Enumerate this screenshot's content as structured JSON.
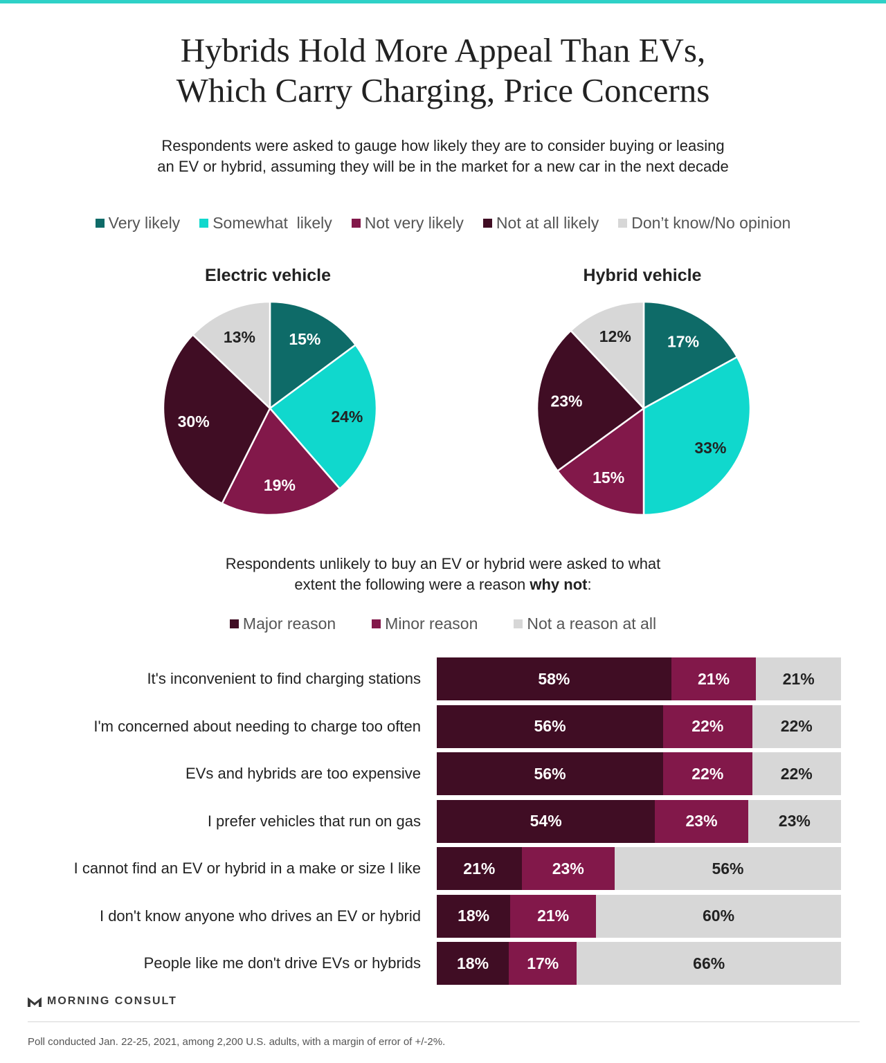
{
  "title": {
    "line1": "Hybrids Hold More Appeal Than EVs,",
    "line2": "Which Carry Charging, Price Concerns"
  },
  "subtitle": {
    "line1": "Respondents were asked to gauge how likely they are to consider buying or leasing",
    "line2": "an EV or hybrid, assuming they will be in the market for a new car in the next decade"
  },
  "colors": {
    "teal_bar": "#2fd1c7",
    "very_likely": "#0e6b68",
    "somewhat_likely": "#10d8cd",
    "not_very_likely": "#82184a",
    "not_at_all_likely": "#400d24",
    "dont_know": "#d7d7d7",
    "major_reason": "#400d24",
    "minor_reason": "#82184a",
    "not_a_reason": "#d7d7d7"
  },
  "pie_legend": [
    {
      "label": "Very likely",
      "color": "#0e6b68"
    },
    {
      "label": "Somewhat  likely",
      "color": "#10d8cd"
    },
    {
      "label": "Not very likely",
      "color": "#82184a"
    },
    {
      "label": "Not at all likely",
      "color": "#400d24"
    },
    {
      "label": "Don’t know/No opinion",
      "color": "#d7d7d7"
    }
  ],
  "question2": {
    "line1": "Respondents unlikely to buy an EV or hybrid were asked to what",
    "line2_pre": "extent the following were a reason ",
    "line2_bold": "why not",
    "line2_post": ":"
  },
  "bar_legend": [
    {
      "label": "Major reason",
      "color": "#400d24"
    },
    {
      "label": "Minor reason",
      "color": "#82184a"
    },
    {
      "label": "Not a reason at all",
      "color": "#d7d7d7"
    }
  ],
  "chart_data": [
    {
      "type": "pie",
      "title": "Electric vehicle",
      "categories": [
        "Very likely",
        "Somewhat  likely",
        "Not very likely",
        "Not at all likely",
        "Don’t know/No opinion"
      ],
      "values": [
        15,
        24,
        19,
        30,
        13
      ],
      "labels": [
        "15%",
        "24%",
        "19%",
        "30%",
        "13%"
      ]
    },
    {
      "type": "pie",
      "title": "Hybrid vehicle",
      "categories": [
        "Very likely",
        "Somewhat  likely",
        "Not very likely",
        "Not at all likely",
        "Don’t know/No opinion"
      ],
      "values": [
        17,
        33,
        15,
        23,
        12
      ],
      "labels": [
        "17%",
        "33%",
        "15%",
        "23%",
        "12%"
      ]
    },
    {
      "type": "bar",
      "orientation": "horizontal-stacked",
      "categories": [
        "It's inconvenient to find charging stations",
        "I'm concerned about needing to charge too often",
        "EVs and hybrids are too expensive",
        "I prefer vehicles that run on gas",
        "I cannot find an EV or hybrid in a make or size I like",
        "I don't know anyone who drives an EV or hybrid",
        "People like me don't drive EVs or hybrids"
      ],
      "series": [
        {
          "name": "Major reason",
          "values": [
            58,
            56,
            56,
            54,
            21,
            18,
            18
          ]
        },
        {
          "name": "Minor reason",
          "values": [
            21,
            22,
            22,
            23,
            23,
            21,
            17
          ]
        },
        {
          "name": "Not a reason at all",
          "values": [
            21,
            22,
            22,
            23,
            56,
            60,
            66
          ]
        }
      ]
    }
  ],
  "brand": "MORNING CONSULT",
  "footnote": "Poll conducted Jan. 22-25, 2021, among 2,200 U.S. adults, with a margin of error of +/-2%."
}
